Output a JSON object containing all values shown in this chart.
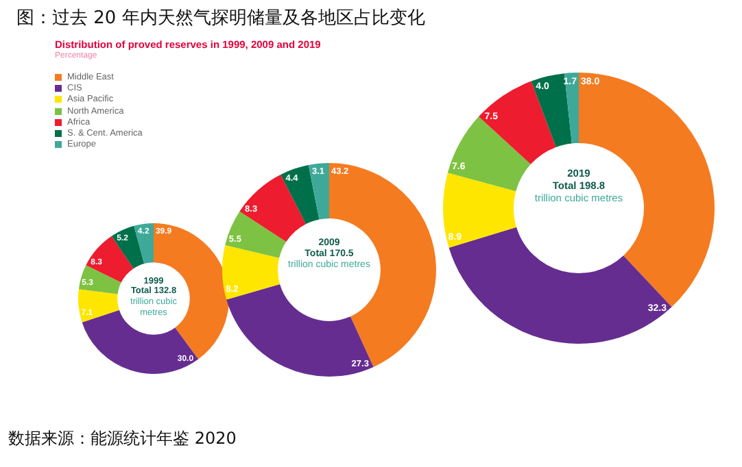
{
  "chart_data": [
    {
      "type": "donut",
      "title": "1999",
      "subtitle": "Total 132.8",
      "categories": [
        "Middle East",
        "CIS",
        "Asia Pacific",
        "North America",
        "Africa",
        "S. & Cent. America",
        "Europe"
      ],
      "values": [
        39.9,
        30.0,
        7.1,
        5.3,
        8.3,
        5.2,
        4.2
      ],
      "value_labels": [
        "39.9",
        "30.0",
        "7.1",
        "5.3",
        "8.3",
        "5.2",
        "4.2"
      ],
      "colors": [
        "#f47b20",
        "#662d91",
        "#ffe600",
        "#7dc242",
        "#ed1c2e",
        "#00704a",
        "#3fa999"
      ],
      "legend": "top left",
      "annotations": [
        "trillion cubic metres",
        "图：过去 20 年内天然气探明储量及各地区占比变化",
        "Distribution of proved reserves in 1999, 2009 and 2019",
        "Percentage",
        "数据来源：能源统计年鉴 2020"
      ]
    },
    {
      "type": "donut",
      "title": "2009",
      "subtitle": "Total 170.5",
      "categories": [
        null,
        null,
        null,
        null,
        null,
        null,
        null
      ],
      "values": [
        43.2,
        27.3,
        8.2,
        5.5,
        8.3,
        4.4,
        3.1
      ],
      "value_labels": [
        "43.2",
        "27.3",
        "8.2",
        "5.5",
        "8.3",
        "4.4",
        "3.1"
      ],
      "colors": [
        "#f47b20",
        "#662d91",
        "#ffe600",
        "#7dc242",
        "#ed1c2e",
        "#00704a",
        "#3fa999"
      ],
      "annotations": [
        "trillion cubic metres"
      ]
    },
    {
      "type": "donut",
      "title": "2019",
      "subtitle": "Total 198.8",
      "categories": [
        null,
        null,
        null,
        null,
        null,
        null,
        null
      ],
      "values": [
        38.0,
        32.3,
        8.9,
        7.6,
        7.5,
        4.0,
        1.7
      ],
      "value_labels": [
        "38.0",
        "32.3",
        "8.9",
        "7.6",
        "7.5",
        "4.0",
        "1.7"
      ],
      "colors": [
        "#f47b20",
        "#662d91",
        "#ffe600",
        "#7dc242",
        "#ed1c2e",
        "#00704a",
        "#3fa999"
      ],
      "annotations": [
        "trillion cubic metres"
      ]
    }
  ]
}
